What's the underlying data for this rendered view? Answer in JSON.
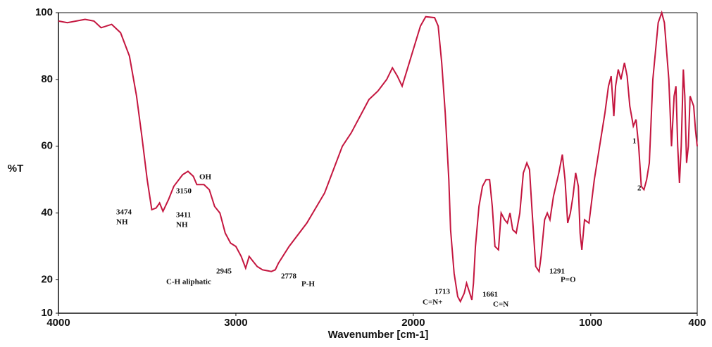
{
  "chart_data": {
    "type": "line",
    "xlabel": "Wavenumber [cm-1]",
    "ylabel": "%T",
    "xlim": [
      4000,
      400
    ],
    "xticks": [
      4000,
      3000,
      2000,
      1000,
      400
    ],
    "ylim": [
      10,
      100
    ],
    "yticks": [
      10,
      20,
      40,
      60,
      80,
      100
    ],
    "annotations": [
      "3474",
      "NH",
      "3411",
      "NH",
      "3150",
      "OH",
      "2945",
      "C-H aliphatic",
      "2778",
      "P-H",
      "1713",
      "C=N+",
      "1661",
      "C=N",
      "1291",
      "P=O",
      "1",
      "2"
    ],
    "x": [
      4000,
      3950,
      3900,
      3850,
      3800,
      3760,
      3700,
      3650,
      3600,
      3560,
      3530,
      3500,
      3474,
      3450,
      3430,
      3411,
      3380,
      3350,
      3300,
      3270,
      3240,
      3220,
      3180,
      3150,
      3120,
      3090,
      3060,
      3030,
      3000,
      2970,
      2945,
      2925,
      2910,
      2880,
      2850,
      2800,
      2778,
      2760,
      2700,
      2600,
      2500,
      2450,
      2400,
      2350,
      2300,
      2250,
      2200,
      2150,
      2118,
      2090,
      2063,
      2040,
      2000,
      1960,
      1930,
      1880,
      1860,
      1840,
      1820,
      1800,
      1790,
      1770,
      1750,
      1735,
      1713,
      1700,
      1685,
      1670,
      1661,
      1650,
      1630,
      1610,
      1590,
      1570,
      1555,
      1540,
      1520,
      1505,
      1485,
      1470,
      1455,
      1440,
      1420,
      1400,
      1380,
      1360,
      1345,
      1330,
      1310,
      1291,
      1280,
      1260,
      1245,
      1230,
      1210,
      1180,
      1160,
      1145,
      1130,
      1115,
      1100,
      1085,
      1070,
      1060,
      1050,
      1035,
      1010,
      980,
      950,
      920,
      900,
      885,
      870,
      860,
      845,
      830,
      810,
      795,
      780,
      760,
      745,
      730,
      715,
      700,
      685,
      670,
      650,
      620,
      600,
      585,
      560,
      545,
      530,
      520,
      510,
      500,
      490,
      478,
      470,
      460,
      450,
      440,
      420,
      410,
      400
    ],
    "series": [
      {
        "name": "%T",
        "color": "#c4163f",
        "values": [
          97.5,
          97,
          97.5,
          98,
          97.5,
          95.5,
          96.5,
          94,
          87,
          75,
          63,
          50,
          41,
          41.5,
          43,
          40.5,
          44,
          48,
          51.5,
          52.5,
          51,
          48.5,
          48.5,
          47,
          42,
          40,
          34,
          31,
          30,
          27,
          23.5,
          27,
          26,
          24,
          23,
          22.5,
          23,
          25,
          30,
          37,
          46,
          53,
          60,
          64,
          69,
          74,
          76.5,
          80,
          83.5,
          81,
          78,
          82,
          89,
          96,
          98.8,
          98.5,
          96,
          85,
          70,
          50,
          35,
          22,
          15,
          13.5,
          16,
          19,
          16.5,
          14,
          19,
          30,
          42,
          48,
          50,
          50,
          42,
          30,
          29,
          40,
          38,
          37,
          40,
          35,
          34,
          40,
          52,
          55,
          53,
          40,
          24,
          22.5,
          27,
          38,
          40,
          38,
          45,
          52,
          57.5,
          50,
          37,
          40,
          45,
          52,
          48,
          34,
          29,
          38,
          37,
          50,
          60,
          70,
          78,
          81,
          69,
          78,
          83,
          80,
          85,
          81,
          72,
          66,
          68,
          60,
          48,
          47,
          50,
          55,
          80,
          97,
          100,
          97,
          80,
          60,
          75,
          78,
          60,
          49,
          60,
          83,
          75,
          55,
          60,
          75,
          72,
          65,
          60
        ]
      }
    ]
  }
}
